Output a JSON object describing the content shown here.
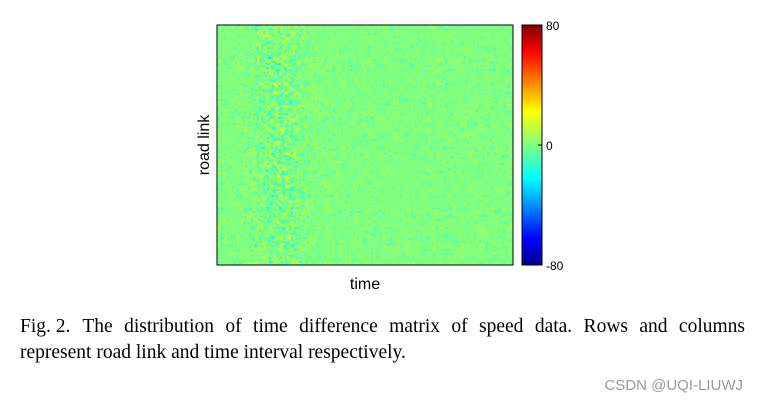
{
  "chart_data": {
    "type": "heatmap",
    "title": "",
    "xlabel": "time",
    "ylabel": "road link",
    "colorbar": {
      "colormap": "jet",
      "min": -80,
      "max": 80,
      "ticks": [
        "80",
        "0",
        "-80"
      ]
    },
    "description_values": {
      "dominant_value": 0,
      "typical_range": [
        -20,
        20
      ]
    }
  },
  "caption": {
    "fig_num": "Fig. 2.",
    "text": "The distribution of time difference matrix of speed data. Rows and columns represent road link and time interval respectively."
  },
  "watermark": "CSDN @UQI-LIUWJ"
}
